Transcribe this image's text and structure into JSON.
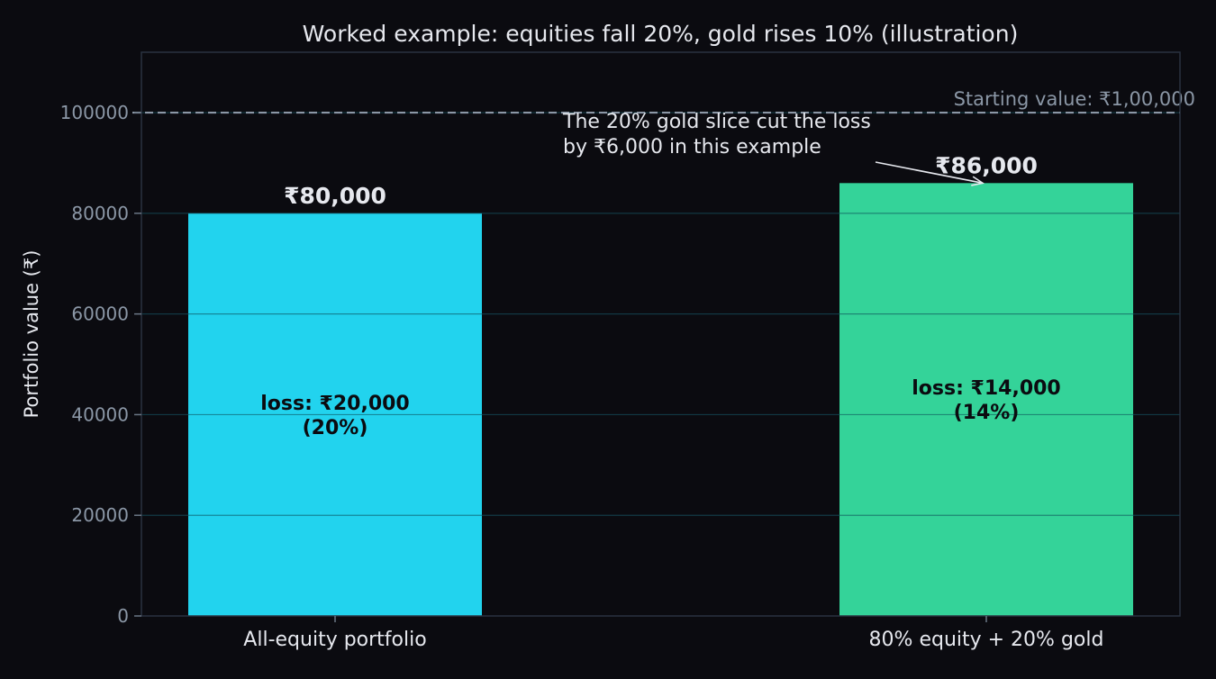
{
  "chart_data": {
    "type": "bar",
    "title": "Worked example: equities fall 20%, gold rises 10% (illustration)",
    "xlabel": "",
    "ylabel": "Portfolio value (₹)",
    "ylim": [
      0,
      112000
    ],
    "yticks": [
      0,
      20000,
      40000,
      60000,
      80000,
      100000
    ],
    "grid": true,
    "categories": [
      "All-equity portfolio",
      "80% equity + 20% gold"
    ],
    "values": [
      80000,
      86000
    ],
    "value_labels": [
      "₹80,000",
      "₹86,000"
    ],
    "inner_labels": [
      [
        "loss: ₹20,000",
        "(20%)"
      ],
      [
        "loss: ₹14,000",
        "(14%)"
      ]
    ],
    "colors": [
      "#22d3ee",
      "#34d399"
    ],
    "reference_line": {
      "value": 100000,
      "label": "Starting value: ₹1,00,000"
    },
    "annotation": {
      "lines": [
        "The 20% gold slice cut the loss",
        "by ₹6,000 in this example"
      ],
      "points_to_category": 1
    }
  }
}
